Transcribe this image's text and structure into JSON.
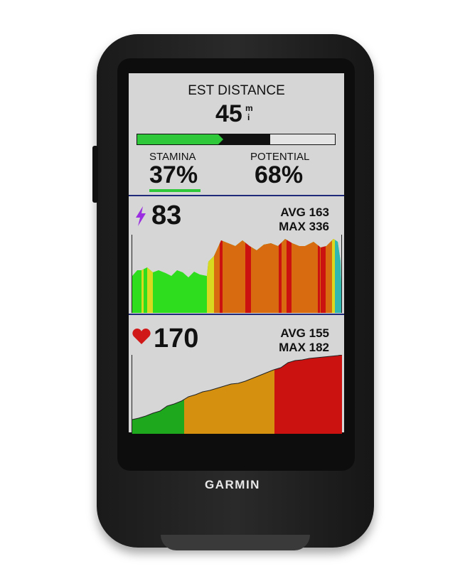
{
  "device": {
    "brand": "GARMIN"
  },
  "est_distance": {
    "label": "EST DISTANCE",
    "value": "45",
    "unit_top": "m",
    "unit_bottom": "i",
    "bar_green_fraction": 0.42,
    "bar_black_fraction": 0.67
  },
  "stamina": {
    "label": "STAMINA",
    "value": "37%"
  },
  "potential": {
    "label": "POTENTIAL",
    "value": "68%"
  },
  "power": {
    "icon": "lightning-bolt-icon",
    "value": "83",
    "avg": "AVG 163",
    "max": "MAX 336"
  },
  "heart_rate": {
    "icon": "heart-icon",
    "value": "170",
    "avg": "AVG 155",
    "max": "MAX 182"
  },
  "colors": {
    "green": "#22cc22",
    "yellow": "#d8d820",
    "orange": "#d86a10",
    "red": "#cc1111",
    "hr_orange": "#d4900e",
    "accent_purple": "#9a2ee0",
    "divider": "#1f2a7a"
  }
}
